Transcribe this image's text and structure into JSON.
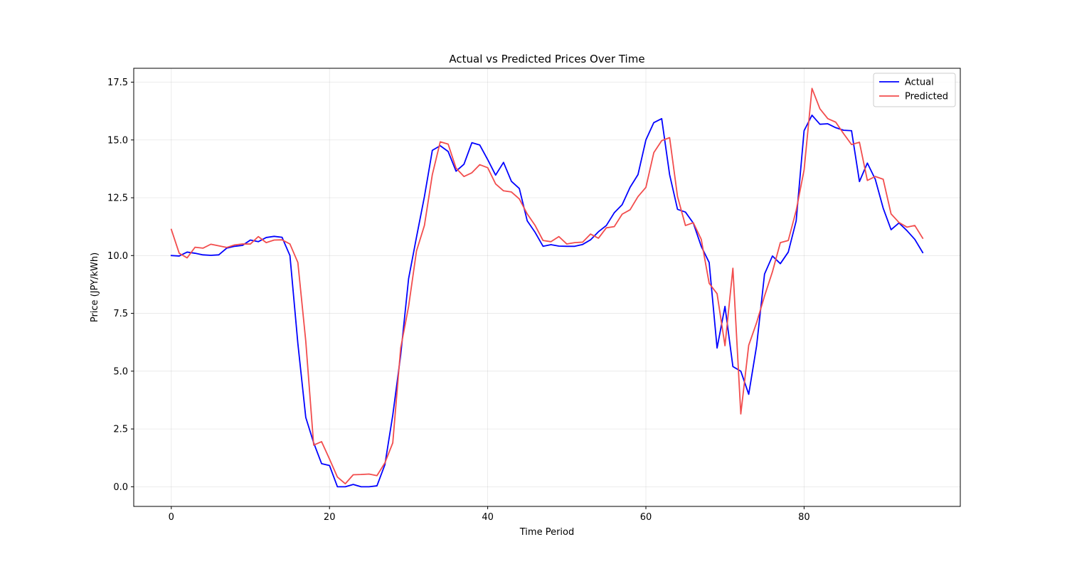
{
  "chart_data": {
    "type": "line",
    "title": "Actual vs Predicted Prices Over Time",
    "xlabel": "Time Period",
    "ylabel": "Price (JPY/kWh)",
    "xlim": [
      -4.75,
      99.75
    ],
    "ylim": [
      -0.85,
      18.1
    ],
    "xticks": [
      0,
      20,
      40,
      60,
      80
    ],
    "yticks": [
      0.0,
      2.5,
      5.0,
      7.5,
      10.0,
      12.5,
      15.0,
      17.5
    ],
    "ytick_labels": [
      "0.0",
      "2.5",
      "5.0",
      "7.5",
      "10.0",
      "12.5",
      "15.0",
      "17.5"
    ],
    "grid": true,
    "legend_position": "top-right",
    "x": [
      0,
      1,
      2,
      3,
      4,
      5,
      6,
      7,
      8,
      9,
      10,
      11,
      12,
      13,
      14,
      15,
      16,
      17,
      18,
      19,
      20,
      21,
      22,
      23,
      24,
      25,
      26,
      27,
      28,
      29,
      30,
      31,
      32,
      33,
      34,
      35,
      36,
      37,
      38,
      39,
      40,
      41,
      42,
      43,
      44,
      45,
      46,
      47,
      48,
      49,
      50,
      51,
      52,
      53,
      54,
      55,
      56,
      57,
      58,
      59,
      60,
      61,
      62,
      63,
      64,
      65,
      66,
      67,
      68,
      69,
      70,
      71,
      72,
      73,
      74,
      75,
      76,
      77,
      78,
      79,
      80,
      81,
      82,
      83,
      84,
      85,
      86,
      87,
      88,
      89,
      90,
      91,
      92,
      93,
      94,
      95
    ],
    "series": [
      {
        "name": "Actual",
        "color": "#0000ff",
        "values": [
          10.0,
          9.98,
          10.15,
          10.1,
          10.03,
          10.01,
          10.03,
          10.32,
          10.4,
          10.44,
          10.67,
          10.6,
          10.78,
          10.83,
          10.79,
          10.0,
          6.2,
          3.0,
          1.9,
          1.0,
          0.92,
          0.0,
          0.0,
          0.1,
          0.0,
          0.0,
          0.04,
          0.95,
          3.1,
          5.7,
          9.0,
          10.8,
          12.55,
          14.55,
          14.75,
          14.5,
          13.65,
          13.95,
          14.88,
          14.78,
          14.15,
          13.48,
          14.03,
          13.21,
          12.9,
          11.5,
          11.0,
          10.4,
          10.47,
          10.41,
          10.4,
          10.4,
          10.48,
          10.68,
          11.03,
          11.3,
          11.85,
          12.2,
          12.95,
          13.5,
          15.0,
          15.75,
          15.92,
          13.5,
          12.0,
          11.88,
          11.4,
          10.4,
          9.7,
          6.0,
          7.8,
          5.2,
          5.0,
          4.0,
          6.1,
          9.2,
          9.98,
          9.65,
          10.15,
          11.5,
          15.4,
          16.07,
          15.68,
          15.7,
          15.53,
          15.42,
          15.4,
          13.2,
          14.0,
          13.3,
          12.05,
          11.12,
          11.41,
          11.08,
          10.7,
          10.13
        ]
      },
      {
        "name": "Predicted",
        "color": "#f24d4d",
        "values": [
          11.13,
          10.1,
          9.9,
          10.36,
          10.32,
          10.49,
          10.42,
          10.35,
          10.46,
          10.5,
          10.5,
          10.82,
          10.56,
          10.67,
          10.68,
          10.5,
          9.7,
          6.3,
          1.8,
          1.95,
          1.2,
          0.42,
          0.13,
          0.52,
          0.53,
          0.55,
          0.48,
          1.03,
          1.9,
          6.0,
          7.8,
          10.2,
          11.3,
          13.5,
          14.92,
          14.82,
          13.78,
          13.42,
          13.58,
          13.93,
          13.8,
          13.1,
          12.8,
          12.75,
          12.45,
          11.8,
          11.3,
          10.65,
          10.6,
          10.82,
          10.5,
          10.56,
          10.58,
          10.93,
          10.75,
          11.2,
          11.25,
          11.79,
          11.98,
          12.55,
          12.95,
          14.45,
          14.97,
          15.1,
          12.55,
          11.3,
          11.42,
          10.7,
          8.8,
          8.35,
          6.1,
          9.45,
          3.15,
          6.12,
          7.1,
          8.25,
          9.3,
          10.56,
          10.65,
          11.95,
          13.7,
          17.23,
          16.35,
          15.92,
          15.77,
          15.27,
          14.8,
          14.9,
          13.25,
          13.42,
          13.3,
          11.8,
          11.43,
          11.23,
          11.3,
          10.75
        ]
      }
    ]
  }
}
